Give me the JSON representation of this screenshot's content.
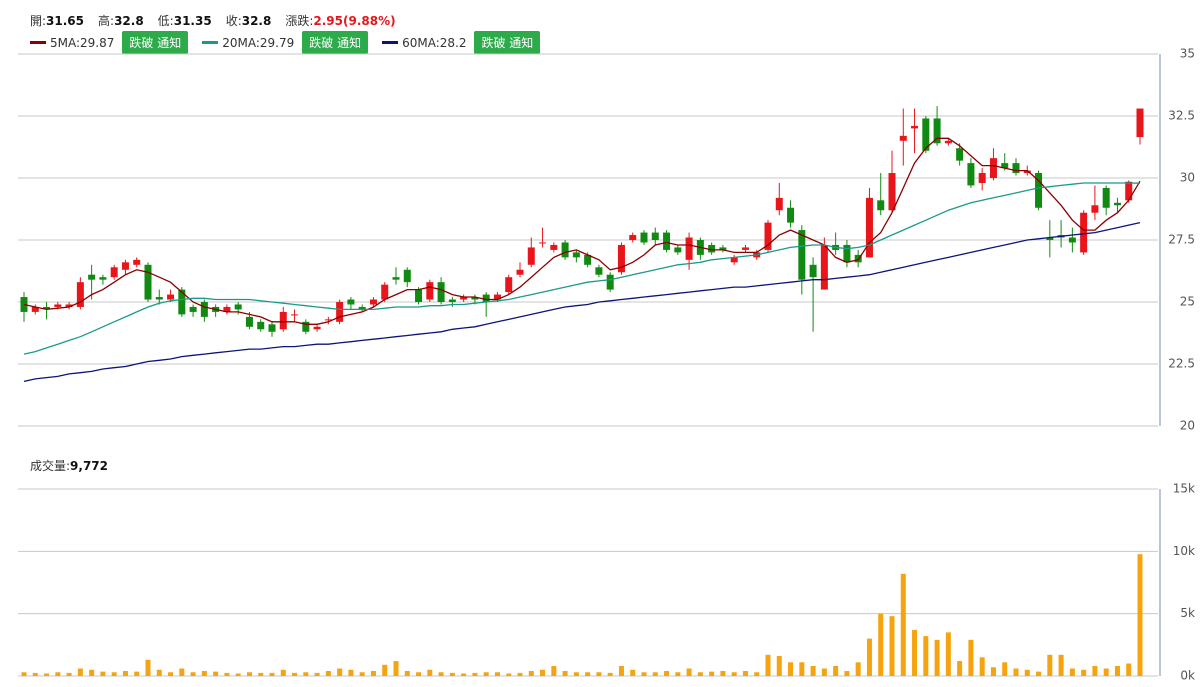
{
  "quote": {
    "items": [
      {
        "label": "開:",
        "value": 31.65
      },
      {
        "label": "高:",
        "value": 32.8
      },
      {
        "label": "低:",
        "value": 31.35
      },
      {
        "label": "收:",
        "value": 32.8
      }
    ],
    "change": {
      "label": "漲跌:",
      "value": "2.95(9.88%)"
    }
  },
  "chart_data": [
    {
      "type": "candlestick",
      "up_color": "#e8151b",
      "down_color": "#118a11",
      "grid": true,
      "alert_button": "跌破 通知",
      "ylim": [
        20,
        35
      ],
      "yticks": [
        20,
        22.5,
        25,
        27.5,
        30,
        32.5,
        35
      ],
      "open": [
        25.2,
        24.6,
        24.8,
        24.8,
        24.8,
        24.8,
        26.1,
        26.0,
        26.0,
        26.3,
        26.5,
        26.5,
        25.2,
        25.1,
        25.5,
        24.8,
        25.0,
        24.8,
        24.6,
        24.9,
        24.4,
        24.2,
        24.1,
        23.9,
        24.5,
        24.2,
        23.9,
        24.3,
        24.2,
        25.1,
        24.8,
        24.9,
        25.1,
        26.0,
        26.3,
        25.5,
        25.1,
        25.8,
        25.1,
        25.1,
        25.2,
        25.3,
        25.1,
        25.4,
        26.1,
        26.5,
        27.4,
        27.1,
        27.4,
        27.0,
        26.9,
        26.4,
        26.1,
        26.2,
        27.5,
        27.8,
        27.8,
        27.8,
        27.2,
        26.7,
        27.5,
        27.3,
        27.2,
        26.6,
        27.1,
        26.8,
        27.1,
        28.7,
        28.8,
        27.9,
        26.5,
        25.5,
        27.3,
        27.3,
        26.9,
        26.8,
        29.1,
        28.7,
        31.5,
        32.0,
        32.4,
        32.4,
        31.4,
        31.2,
        30.6,
        29.8,
        30.0,
        30.6,
        30.6,
        30.2,
        30.2,
        27.6,
        27.7,
        27.6,
        27.0,
        28.6,
        29.6,
        29.0,
        29.1,
        31.65
      ],
      "high": [
        25.4,
        24.9,
        25.0,
        25.0,
        25.0,
        26.0,
        26.5,
        26.1,
        26.5,
        26.7,
        26.8,
        26.6,
        25.5,
        25.5,
        25.6,
        24.9,
        25.1,
        24.9,
        24.9,
        25.0,
        24.6,
        24.3,
        24.2,
        24.8,
        24.7,
        24.3,
        24.1,
        24.4,
        25.1,
        25.2,
        24.9,
        25.2,
        25.8,
        26.4,
        26.4,
        25.6,
        25.9,
        26.0,
        25.2,
        25.3,
        25.3,
        25.4,
        25.4,
        26.1,
        26.6,
        27.6,
        28.0,
        27.4,
        27.5,
        27.1,
        27.0,
        26.5,
        26.2,
        27.4,
        27.8,
        27.9,
        28.0,
        27.9,
        27.3,
        27.8,
        27.6,
        27.4,
        27.3,
        26.9,
        27.3,
        27.1,
        28.3,
        29.8,
        29.1,
        28.1,
        26.8,
        27.6,
        27.8,
        27.5,
        27.1,
        29.6,
        30.2,
        31.1,
        32.8,
        32.8,
        32.5,
        32.9,
        31.6,
        31.4,
        30.8,
        30.4,
        31.2,
        31.0,
        30.8,
        30.5,
        30.3,
        28.3,
        28.3,
        28.0,
        28.7,
        29.7,
        29.7,
        29.2,
        29.9,
        32.8
      ],
      "low": [
        24.2,
        24.5,
        24.3,
        24.7,
        24.7,
        24.7,
        25.1,
        25.7,
        25.9,
        26.1,
        26.4,
        25.0,
        24.9,
        25.0,
        24.4,
        24.4,
        24.2,
        24.4,
        24.5,
        24.5,
        23.9,
        23.8,
        23.6,
        23.8,
        24.2,
        23.7,
        23.8,
        24.1,
        24.1,
        24.7,
        24.6,
        24.8,
        25.0,
        25.7,
        25.6,
        24.9,
        25.0,
        24.9,
        24.8,
        25.0,
        24.9,
        24.4,
        25.0,
        25.3,
        26.0,
        26.4,
        27.2,
        27.0,
        26.7,
        26.6,
        26.4,
        26.0,
        25.4,
        26.1,
        27.4,
        27.3,
        27.3,
        27.0,
        26.9,
        26.3,
        26.7,
        26.9,
        27.0,
        26.5,
        27.0,
        26.7,
        27.0,
        28.5,
        28.0,
        25.3,
        23.8,
        25.5,
        26.9,
        26.4,
        26.4,
        26.8,
        28.5,
        28.6,
        30.5,
        31.0,
        31.0,
        31.3,
        31.3,
        30.5,
        29.6,
        29.5,
        29.9,
        30.3,
        30.1,
        30.1,
        28.7,
        26.8,
        27.2,
        27.0,
        26.9,
        28.3,
        28.5,
        28.6,
        29.0,
        31.35
      ],
      "close": [
        24.6,
        24.8,
        24.7,
        24.9,
        24.9,
        25.8,
        25.9,
        25.9,
        26.4,
        26.6,
        26.7,
        25.1,
        25.1,
        25.3,
        24.5,
        24.6,
        24.4,
        24.6,
        24.8,
        24.7,
        24.0,
        23.9,
        23.8,
        24.6,
        24.5,
        23.8,
        24.0,
        24.3,
        25.0,
        24.9,
        24.7,
        25.1,
        25.7,
        25.9,
        25.8,
        25.0,
        25.8,
        25.0,
        25.0,
        25.2,
        25.1,
        25.0,
        25.3,
        26.0,
        26.3,
        27.2,
        27.4,
        27.3,
        26.8,
        26.8,
        26.5,
        26.1,
        25.5,
        27.3,
        27.7,
        27.4,
        27.5,
        27.1,
        27.0,
        27.6,
        26.9,
        27.0,
        27.1,
        26.8,
        27.2,
        27.0,
        28.2,
        29.2,
        28.2,
        25.9,
        26.0,
        27.3,
        27.1,
        26.6,
        26.6,
        29.2,
        28.7,
        30.2,
        31.7,
        32.1,
        31.1,
        31.4,
        31.5,
        30.7,
        29.7,
        30.2,
        30.8,
        30.4,
        30.2,
        30.3,
        28.8,
        27.5,
        27.6,
        27.4,
        28.6,
        28.9,
        28.8,
        28.9,
        29.85,
        32.8
      ],
      "ma": [
        {
          "name": "5MA:",
          "value": 29.87,
          "color": "#8b0000",
          "values": [
            24.9,
            24.8,
            24.7,
            24.75,
            24.8,
            25.0,
            25.3,
            25.5,
            25.8,
            26.1,
            26.3,
            26.2,
            26.0,
            25.8,
            25.4,
            25.0,
            24.8,
            24.7,
            24.6,
            24.6,
            24.5,
            24.4,
            24.2,
            24.2,
            24.2,
            24.1,
            24.1,
            24.2,
            24.4,
            24.5,
            24.6,
            24.8,
            25.1,
            25.3,
            25.5,
            25.5,
            25.6,
            25.5,
            25.3,
            25.2,
            25.2,
            25.1,
            25.1,
            25.3,
            25.6,
            26.0,
            26.4,
            26.8,
            27.0,
            27.1,
            26.9,
            26.7,
            26.3,
            26.4,
            26.6,
            26.9,
            27.3,
            27.4,
            27.3,
            27.3,
            27.2,
            27.1,
            27.1,
            27.0,
            27.0,
            27.0,
            27.3,
            27.7,
            27.9,
            27.7,
            27.5,
            27.3,
            26.8,
            26.6,
            26.7,
            27.4,
            27.8,
            28.6,
            29.6,
            30.6,
            31.2,
            31.6,
            31.6,
            31.3,
            30.9,
            30.5,
            30.5,
            30.4,
            30.3,
            30.3,
            29.9,
            29.4,
            28.9,
            28.3,
            27.9,
            27.9,
            28.3,
            28.6,
            29.1,
            29.87
          ]
        },
        {
          "name": "20MA:",
          "value": 29.79,
          "color": "#1a9a8c",
          "values": [
            22.9,
            23.0,
            23.15,
            23.3,
            23.45,
            23.6,
            23.8,
            24.0,
            24.2,
            24.4,
            24.6,
            24.8,
            24.95,
            25.05,
            25.1,
            25.15,
            25.15,
            25.1,
            25.1,
            25.1,
            25.1,
            25.05,
            25.0,
            24.95,
            24.9,
            24.85,
            24.8,
            24.75,
            24.7,
            24.7,
            24.7,
            24.7,
            24.75,
            24.8,
            24.8,
            24.8,
            24.85,
            24.85,
            24.9,
            24.9,
            24.95,
            25.0,
            25.05,
            25.1,
            25.2,
            25.3,
            25.4,
            25.5,
            25.6,
            25.7,
            25.8,
            25.85,
            25.9,
            26.0,
            26.1,
            26.2,
            26.3,
            26.4,
            26.5,
            26.55,
            26.6,
            26.7,
            26.75,
            26.8,
            26.85,
            26.9,
            27.0,
            27.1,
            27.2,
            27.25,
            27.3,
            27.3,
            27.2,
            27.15,
            27.2,
            27.3,
            27.5,
            27.7,
            27.9,
            28.1,
            28.3,
            28.5,
            28.7,
            28.85,
            29.0,
            29.1,
            29.2,
            29.3,
            29.4,
            29.5,
            29.6,
            29.65,
            29.7,
            29.75,
            29.8,
            29.8,
            29.8,
            29.8,
            29.8,
            29.79
          ]
        },
        {
          "name": "60MA:",
          "value": 28.2,
          "color": "#0d1478",
          "values": [
            21.8,
            21.9,
            21.95,
            22.0,
            22.1,
            22.15,
            22.2,
            22.3,
            22.35,
            22.4,
            22.5,
            22.6,
            22.65,
            22.7,
            22.8,
            22.85,
            22.9,
            22.95,
            23.0,
            23.05,
            23.1,
            23.1,
            23.15,
            23.2,
            23.2,
            23.25,
            23.3,
            23.3,
            23.35,
            23.4,
            23.45,
            23.5,
            23.55,
            23.6,
            23.65,
            23.7,
            23.75,
            23.8,
            23.9,
            23.95,
            24.0,
            24.1,
            24.2,
            24.3,
            24.4,
            24.5,
            24.6,
            24.7,
            24.8,
            24.85,
            24.9,
            25.0,
            25.05,
            25.1,
            25.15,
            25.2,
            25.25,
            25.3,
            25.35,
            25.4,
            25.45,
            25.5,
            25.55,
            25.6,
            25.6,
            25.65,
            25.7,
            25.75,
            25.8,
            25.85,
            25.9,
            25.9,
            25.95,
            26.0,
            26.05,
            26.1,
            26.2,
            26.3,
            26.4,
            26.5,
            26.6,
            26.7,
            26.8,
            26.9,
            27.0,
            27.1,
            27.2,
            27.3,
            27.4,
            27.5,
            27.55,
            27.6,
            27.65,
            27.7,
            27.75,
            27.8,
            27.9,
            28.0,
            28.1,
            28.2
          ]
        }
      ]
    },
    {
      "type": "bar",
      "title": "成交量:",
      "title_value": "9,772",
      "color": "#f5a40f",
      "grid": true,
      "ylim": [
        0,
        15000
      ],
      "yticks": [
        {
          "value": 0,
          "label": "0k"
        },
        {
          "value": 5000,
          "label": "5k"
        },
        {
          "value": 10000,
          "label": "10k"
        },
        {
          "value": 15000,
          "label": "15k"
        }
      ],
      "values": [
        300,
        250,
        200,
        300,
        250,
        600,
        500,
        350,
        300,
        400,
        350,
        1300,
        500,
        300,
        600,
        300,
        400,
        350,
        250,
        200,
        300,
        250,
        250,
        500,
        250,
        300,
        250,
        400,
        600,
        500,
        300,
        400,
        900,
        1200,
        400,
        300,
        500,
        300,
        250,
        200,
        250,
        300,
        300,
        200,
        250,
        400,
        500,
        800,
        400,
        300,
        300,
        300,
        250,
        800,
        500,
        300,
        300,
        400,
        300,
        600,
        300,
        350,
        400,
        300,
        400,
        300,
        1700,
        1600,
        1100,
        1100,
        800,
        600,
        800,
        400,
        1100,
        3000,
        5000,
        4800,
        8200,
        3700,
        3200,
        2900,
        3500,
        1200,
        2900,
        1500,
        700,
        1100,
        600,
        500,
        350,
        1700,
        1700,
        600,
        500,
        800,
        600,
        800,
        1000,
        9772
      ]
    }
  ]
}
